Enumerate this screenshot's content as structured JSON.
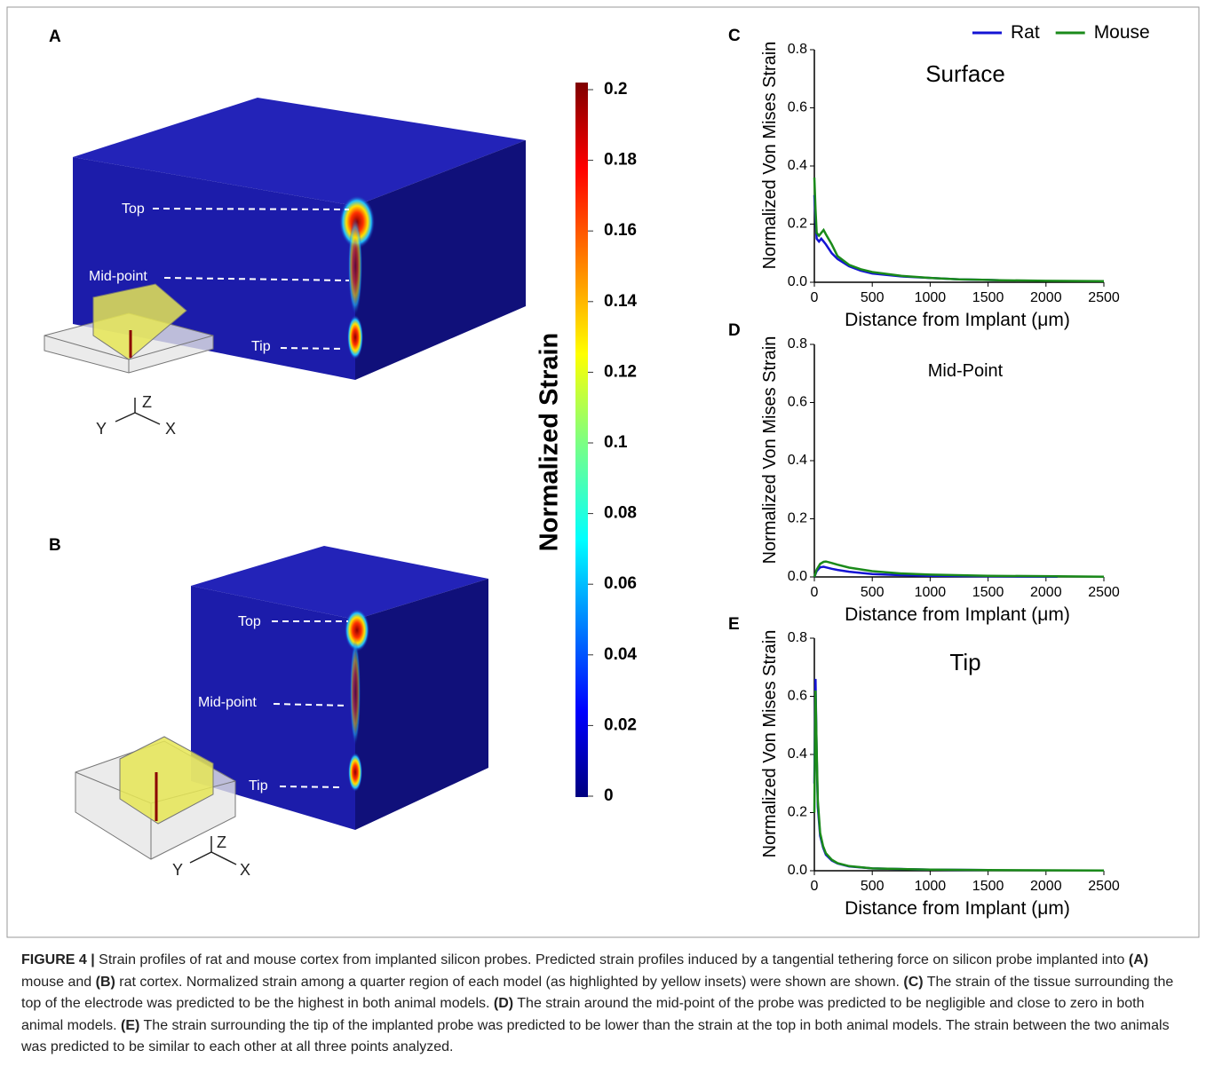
{
  "panels": {
    "a": "A",
    "b": "B"
  },
  "annotations": {
    "a": [
      "Top",
      "Mid-point",
      "Tip"
    ],
    "b": [
      "Top",
      "Mid-point",
      "Tip"
    ],
    "axes_a": [
      "Y",
      "Z",
      "X"
    ],
    "axes_b": [
      "Y",
      "Z",
      "X"
    ]
  },
  "colorbar": {
    "title": "Normalized Strain",
    "lim": [
      0,
      0.2
    ],
    "ticks": [
      0,
      0.02,
      0.04,
      0.06,
      0.08,
      0.1,
      0.12,
      0.14,
      0.16,
      0.18,
      0.2
    ]
  },
  "chart_data": [
    {
      "type": "line",
      "panel": "C",
      "title": "Surface",
      "x_label": "Distance from Implant (μm)",
      "y_label": "Normalized Von Mises Strain",
      "legend": "top-right",
      "x": [
        0,
        10,
        20,
        40,
        60,
        80,
        100,
        150,
        200,
        300,
        400,
        500,
        750,
        1000,
        1250,
        1500,
        1600,
        2000,
        2500
      ],
      "series": [
        {
          "name": "Rat",
          "color": "#1414d4",
          "values": [
            0.3,
            0.22,
            0.15,
            0.14,
            0.15,
            0.14,
            0.13,
            0.1,
            0.08,
            0.055,
            0.04,
            0.03,
            0.02,
            0.015,
            0.01,
            0.008,
            0.007,
            null,
            null
          ]
        },
        {
          "name": "Mouse",
          "color": "#1a8a1a",
          "values": [
            0.36,
            0.25,
            0.17,
            0.16,
            0.17,
            0.18,
            0.165,
            0.13,
            0.09,
            0.06,
            0.045,
            0.035,
            0.022,
            0.015,
            0.01,
            0.008,
            0.007,
            0.005,
            0.004
          ]
        }
      ],
      "xlim": [
        0,
        2500
      ],
      "xticks": [
        0,
        500,
        1000,
        1500,
        2000,
        2500
      ],
      "ylim": [
        0,
        0.8
      ],
      "yticks": [
        {
          "value": 0,
          "label": "0.0"
        },
        0.2,
        0.4,
        0.6,
        0.8
      ]
    },
    {
      "type": "line",
      "panel": "D",
      "title": "Mid-Point",
      "x_label": "Distance from Implant (μm)",
      "y_label": "Normalized Von Mises Strain",
      "x": [
        0,
        20,
        50,
        80,
        100,
        150,
        200,
        300,
        500,
        750,
        1000,
        1500,
        2100,
        2500
      ],
      "series": [
        {
          "color": "#1414d4",
          "values": [
            0.0,
            0.02,
            0.033,
            0.035,
            0.033,
            0.028,
            0.024,
            0.018,
            0.01,
            0.006,
            0.004,
            0.002,
            0.001,
            null
          ]
        },
        {
          "color": "#1a8a1a",
          "values": [
            0.0,
            0.025,
            0.045,
            0.052,
            0.053,
            0.048,
            0.042,
            0.032,
            0.02,
            0.012,
            0.008,
            0.004,
            0.002,
            0.001
          ]
        }
      ],
      "xlim": [
        0,
        2500
      ],
      "xticks": [
        0,
        500,
        1000,
        1500,
        2000,
        2500
      ],
      "ylim": [
        0,
        0.8
      ],
      "yticks": [
        {
          "value": 0,
          "label": "0.0"
        },
        0.2,
        0.4,
        0.6,
        0.8
      ]
    },
    {
      "type": "line",
      "panel": "E",
      "title": "Tip",
      "x_label": "Distance from Implant (μm)",
      "y_label": "Normalized Von Mises Strain",
      "x": [
        0,
        10,
        20,
        30,
        50,
        75,
        100,
        150,
        200,
        300,
        500,
        1000,
        1500,
        2500
      ],
      "series": [
        {
          "color": "#1414d4",
          "values": [
            0.3,
            0.66,
            0.4,
            0.22,
            0.12,
            0.08,
            0.055,
            0.035,
            0.025,
            0.015,
            0.008,
            0.004,
            0.002,
            null
          ]
        },
        {
          "color": "#1a8a1a",
          "values": [
            0.2,
            0.62,
            0.42,
            0.24,
            0.13,
            0.085,
            0.06,
            0.038,
            0.026,
            0.016,
            0.008,
            0.004,
            0.002,
            0.001
          ]
        }
      ],
      "xlim": [
        0,
        2500
      ],
      "xticks": [
        0,
        500,
        1000,
        1500,
        2000,
        2500
      ],
      "ylim": [
        0,
        0.8
      ],
      "yticks": [
        {
          "value": 0,
          "label": "0.0"
        },
        0.2,
        0.4,
        0.6,
        0.8
      ]
    }
  ],
  "caption": {
    "runs": [
      {
        "text": "FIGURE 4 |",
        "bold": true
      },
      {
        "text": " Strain profiles of rat and mouse cortex from implanted silicon probes. Predicted strain profiles induced by a tangential tethering force on silicon probe implanted into ",
        "bold": false
      },
      {
        "text": "(A)",
        "bold": true
      },
      {
        "text": " mouse and ",
        "bold": false
      },
      {
        "text": "(B)",
        "bold": true
      },
      {
        "text": " rat cortex. Normalized strain among a quarter region of each model (as highlighted by yellow insets) were shown are shown. ",
        "bold": false
      },
      {
        "text": "(C)",
        "bold": true
      },
      {
        "text": " The strain of the tissue surrounding the top of the electrode was predicted to be the highest in both animal models. ",
        "bold": false
      },
      {
        "text": "(D)",
        "bold": true
      },
      {
        "text": " The strain around the mid-point of the probe was predicted to be negligible and close to zero in both animal models. ",
        "bold": false
      },
      {
        "text": "(E)",
        "bold": true
      },
      {
        "text": " The strain surrounding the tip of the implanted probe was predicted to be lower than the strain at the top in both animal models. The strain between the two animals was predicted to be similar to each other at all three points analyzed.",
        "bold": false
      }
    ]
  }
}
